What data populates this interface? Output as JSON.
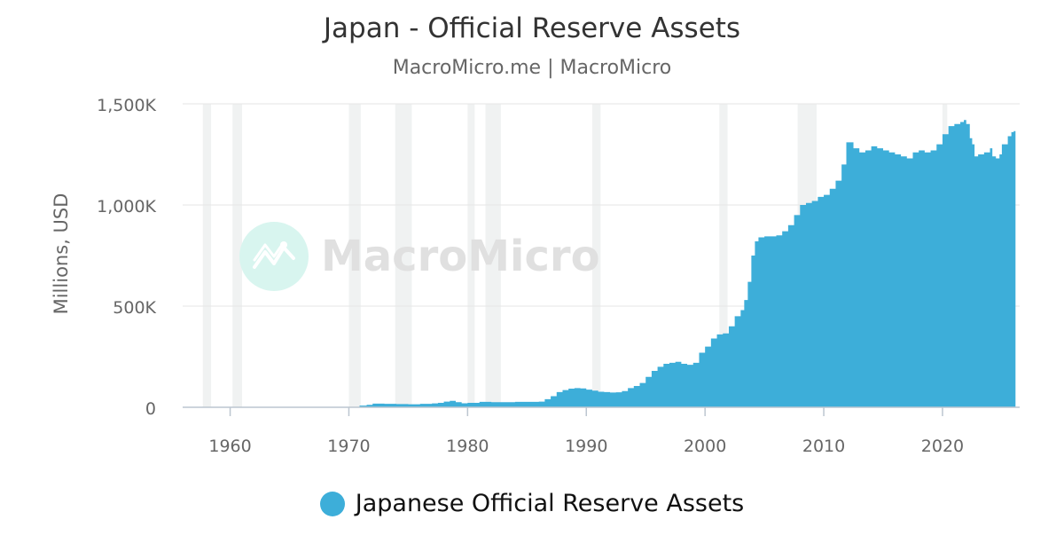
{
  "title": "Japan - Official Reserve Assets",
  "subtitle": "MacroMicro.me | MacroMicro",
  "watermark": "MacroMicro",
  "chart_data": {
    "type": "area",
    "title": "Japan - Official Reserve Assets",
    "subtitle": "MacroMicro.me | MacroMicro",
    "xlabel": "",
    "ylabel": "Millions, USD",
    "xlim": [
      1956,
      2026.5
    ],
    "ylim": [
      0,
      1500000
    ],
    "x_ticks": [
      1960,
      1970,
      1980,
      1990,
      2000,
      2010,
      2020
    ],
    "x_tick_labels": [
      "1960",
      "1970",
      "1980",
      "1990",
      "2000",
      "2010",
      "2020"
    ],
    "y_ticks": [
      0,
      500000,
      1000000,
      1500000
    ],
    "y_tick_labels": [
      "0",
      "500K",
      "1,000K",
      "1,500K"
    ],
    "grid": "horizontal",
    "legend_position": "bottom-center",
    "recession_periods": [
      [
        1957.7,
        1958.4
      ],
      [
        1960.2,
        1961.0
      ],
      [
        1970.0,
        1971.0
      ],
      [
        1973.9,
        1975.3
      ],
      [
        1980.0,
        1980.6
      ],
      [
        1981.5,
        1982.8
      ],
      [
        1990.5,
        1991.2
      ],
      [
        2001.2,
        2001.9
      ],
      [
        2007.8,
        2009.4
      ],
      [
        2020.0,
        2020.4
      ]
    ],
    "series": [
      {
        "name": "Japanese Official Reserve Assets",
        "color": "#3daed9",
        "x": [
          1970.9,
          1971.5,
          1972.0,
          1973.0,
          1974.0,
          1975.0,
          1976.0,
          1977.0,
          1977.5,
          1978.0,
          1978.5,
          1979.0,
          1979.5,
          1980.0,
          1981.0,
          1982.0,
          1983.0,
          1984.0,
          1985.0,
          1986.0,
          1986.5,
          1987.0,
          1987.5,
          1988.0,
          1988.5,
          1989.0,
          1989.5,
          1990.0,
          1990.5,
          1991.0,
          1991.5,
          1992.0,
          1992.5,
          1993.0,
          1993.5,
          1994.0,
          1994.5,
          1995.0,
          1995.5,
          1996.0,
          1996.5,
          1997.0,
          1997.5,
          1998.0,
          1998.5,
          1999.0,
          1999.5,
          2000.0,
          2000.5,
          2001.0,
          2001.5,
          2002.0,
          2002.5,
          2003.0,
          2003.3,
          2003.6,
          2003.9,
          2004.2,
          2004.5,
          2005.0,
          2005.5,
          2006.0,
          2006.5,
          2007.0,
          2007.5,
          2008.0,
          2008.5,
          2009.0,
          2009.5,
          2010.0,
          2010.5,
          2011.0,
          2011.5,
          2011.9,
          2012.5,
          2013.0,
          2013.5,
          2014.0,
          2014.5,
          2015.0,
          2015.5,
          2016.0,
          2016.5,
          2017.0,
          2017.5,
          2018.0,
          2018.5,
          2019.0,
          2019.5,
          2020.0,
          2020.5,
          2021.0,
          2021.5,
          2021.8,
          2022.0,
          2022.3,
          2022.5,
          2022.7,
          2023.0,
          2023.5,
          2024.0,
          2024.2,
          2024.5,
          2024.8,
          2025.0,
          2025.5,
          2025.8,
          2026.0
        ],
        "values": [
          8000,
          12000,
          18000,
          17000,
          16000,
          15000,
          17000,
          19000,
          22000,
          28000,
          32000,
          25000,
          20000,
          22000,
          27000,
          25000,
          25000,
          27000,
          27000,
          28000,
          40000,
          55000,
          75000,
          85000,
          92000,
          95000,
          93000,
          87000,
          82000,
          77000,
          75000,
          73000,
          74000,
          80000,
          95000,
          105000,
          120000,
          150000,
          180000,
          200000,
          215000,
          220000,
          225000,
          215000,
          210000,
          220000,
          270000,
          300000,
          340000,
          360000,
          365000,
          400000,
          450000,
          480000,
          530000,
          620000,
          750000,
          820000,
          840000,
          845000,
          845000,
          850000,
          870000,
          900000,
          950000,
          1000000,
          1010000,
          1020000,
          1040000,
          1050000,
          1080000,
          1120000,
          1200000,
          1310000,
          1280000,
          1260000,
          1270000,
          1290000,
          1280000,
          1270000,
          1260000,
          1250000,
          1240000,
          1230000,
          1260000,
          1270000,
          1260000,
          1270000,
          1300000,
          1350000,
          1390000,
          1400000,
          1410000,
          1420000,
          1400000,
          1330000,
          1300000,
          1240000,
          1250000,
          1260000,
          1280000,
          1240000,
          1230000,
          1250000,
          1300000,
          1340000,
          1360000,
          1365000
        ]
      }
    ]
  }
}
